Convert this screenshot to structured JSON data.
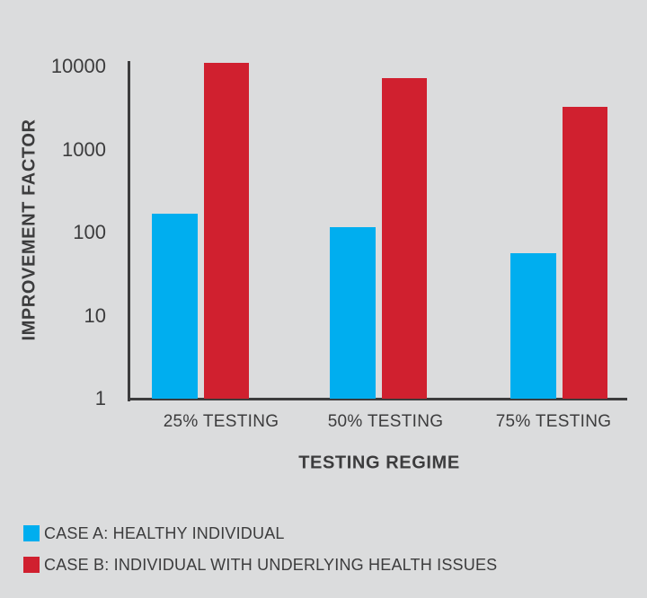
{
  "chart_data": {
    "type": "bar",
    "title": "",
    "xlabel": "TESTING REGIME",
    "ylabel": "IMPROVEMENT FACTOR",
    "yscale": "log",
    "ylim": [
      1,
      10000
    ],
    "yticks": [
      1,
      10,
      100,
      1000,
      10000
    ],
    "ytick_labels": [
      "1",
      "10",
      "100",
      "1000",
      "10000"
    ],
    "categories": [
      "25% TESTING",
      "50% TESTING",
      "75% TESTING"
    ],
    "series": [
      {
        "name": "CASE A: HEALTHY INDIVIDUAL",
        "color": "#00aeef",
        "values": [
          170,
          115,
          56
        ]
      },
      {
        "name": "CASE B: INDIVIDUAL WITH UNDERLYING HEALTH ISSUES",
        "color": "#d0202f",
        "values": [
          11000,
          7200,
          3300
        ]
      }
    ],
    "grid": false,
    "legend_position": "bottom-left"
  },
  "colors": {
    "background": "#dbdcdd",
    "axis": "#3c3c3d",
    "text": "#3c3c3d"
  }
}
